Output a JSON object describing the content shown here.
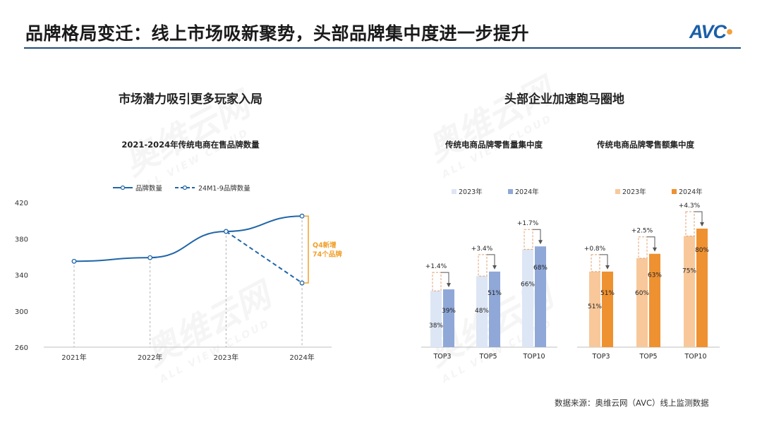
{
  "header": {
    "title": "品牌格局变迁：线上市场吸新聚势，头部品牌集中度进一步提升",
    "logo_text": "AVC",
    "logo_dot": "•"
  },
  "watermark": {
    "text": "奥维云网",
    "subtext": "ALL VIEW CLOUD"
  },
  "left_section": {
    "title": "市场潜力吸引更多玩家入局"
  },
  "right_section": {
    "title": "头部企业加速跑马圈地"
  },
  "source": "数据来源：奥维云网（AVC）线上监测数据",
  "colors": {
    "line_blue": "#2166a8",
    "annotation_orange": "#f0a02a",
    "bar_2023_blue": "#dde6f4",
    "bar_2024_blue": "#8fa8d8",
    "bar_2023_orange": "#f8c89a",
    "bar_2024_orange": "#ee9131"
  },
  "chart_data": [
    {
      "type": "line",
      "title": "2021-2024年传统电商在售品牌数量",
      "categories": [
        "2021年",
        "2022年",
        "2023年",
        "2024年"
      ],
      "ylim": [
        260,
        420
      ],
      "yticks": [
        260,
        300,
        340,
        380,
        420
      ],
      "grid": false,
      "legend": "top-left",
      "series": [
        {
          "name": "品牌数量",
          "style": "solid",
          "values": [
            355,
            359,
            388,
            405
          ]
        },
        {
          "name": "24M1-9品牌数量",
          "style": "dashed",
          "values": [
            null,
            null,
            388,
            331
          ]
        }
      ],
      "annotation": {
        "line1": "Q4新增",
        "line2": "74个品牌"
      }
    },
    {
      "type": "bar",
      "title": "传统电商品牌零售量集中度",
      "categories": [
        "TOP3",
        "TOP5",
        "TOP10"
      ],
      "legend": "top",
      "series": [
        {
          "name": "2023年",
          "values": [
            38,
            48,
            66
          ],
          "labels": [
            "38%",
            "48%",
            "66%"
          ]
        },
        {
          "name": "2024年",
          "values": [
            39,
            51,
            68
          ],
          "labels": [
            "39%",
            "51%",
            "68%"
          ]
        }
      ],
      "deltas": [
        "+1.4%",
        "+3.4%",
        "+1.7%"
      ]
    },
    {
      "type": "bar",
      "title": "传统电商品牌零售额集中度",
      "categories": [
        "TOP3",
        "TOP5",
        "TOP10"
      ],
      "legend": "top",
      "series": [
        {
          "name": "2023年",
          "values": [
            51,
            60,
            75
          ],
          "labels": [
            "51%",
            "60%",
            "75%"
          ]
        },
        {
          "name": "2024年",
          "values": [
            51,
            63,
            80
          ],
          "labels": [
            "51%",
            "63%",
            "80%"
          ]
        }
      ],
      "deltas": [
        "+0.8%",
        "+2.5%",
        "+4.3%"
      ]
    }
  ]
}
